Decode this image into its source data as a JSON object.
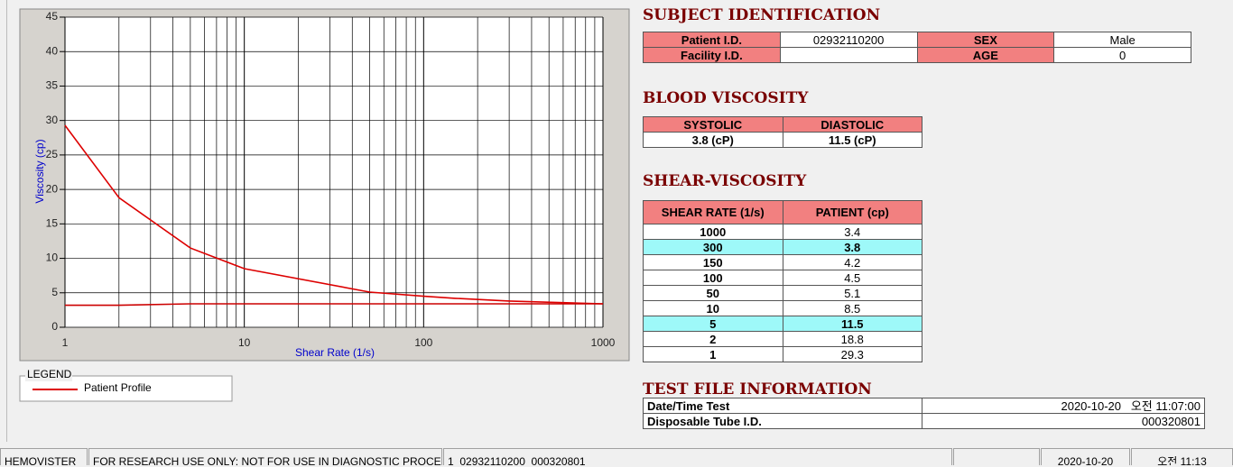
{
  "chart_data": {
    "type": "line",
    "xlabel": "Shear Rate (1/s)",
    "ylabel": "Viscosity (cp)",
    "x": [
      1,
      2,
      5,
      10,
      50,
      100,
      150,
      300,
      1000
    ],
    "series": [
      {
        "name": "Patient Profile",
        "color": "#dd0000",
        "values": [
          29.3,
          18.8,
          11.5,
          8.5,
          5.1,
          4.5,
          4.2,
          3.8,
          3.4
        ]
      },
      {
        "color": "#cc0000",
        "values": [
          3.2,
          3.2,
          3.4,
          3.4,
          3.4,
          3.4,
          3.4,
          3.4,
          3.4
        ]
      }
    ],
    "xscale": "log",
    "xlim": [
      1,
      1000
    ],
    "xticks": [
      1,
      10,
      100,
      1000
    ],
    "xminorticks": [
      2,
      3,
      4,
      5,
      6,
      7,
      8,
      9,
      20,
      30,
      40,
      50,
      60,
      70,
      80,
      90,
      200,
      300,
      400,
      500,
      600,
      700,
      800,
      900
    ],
    "ylim": [
      0,
      45
    ],
    "yticks": [
      0,
      5,
      10,
      15,
      20,
      25,
      30,
      35,
      40,
      45
    ],
    "grid": true,
    "legend_title": "LEGEND"
  },
  "subject_identification": {
    "title": "SUBJECT IDENTIFICATION",
    "rows": [
      [
        "Patient I.D.",
        "02932110200",
        "SEX",
        "Male"
      ],
      [
        "Facility I.D.",
        "",
        "AGE",
        "0"
      ]
    ]
  },
  "blood_viscosity": {
    "title": "BLOOD VISCOSITY",
    "header": [
      "SYSTOLIC",
      "DIASTOLIC"
    ],
    "values": [
      "3.8 (cP)",
      "11.5 (cP)"
    ]
  },
  "shear_viscosity": {
    "title": "SHEAR-VISCOSITY",
    "header": [
      "SHEAR RATE (1/s)",
      "PATIENT (cp)"
    ],
    "rows": [
      [
        "1000",
        "3.4"
      ],
      [
        "300",
        "3.8"
      ],
      [
        "150",
        "4.2"
      ],
      [
        "100",
        "4.5"
      ],
      [
        "50",
        "5.1"
      ],
      [
        "10",
        "8.5"
      ],
      [
        "5",
        "11.5"
      ],
      [
        "2",
        "18.8"
      ],
      [
        "1",
        "29.3"
      ]
    ],
    "highlighted": [
      false,
      true,
      false,
      false,
      false,
      false,
      true,
      false,
      false
    ],
    "highlight_color": "#9ef9f9"
  },
  "test_file": {
    "title": "TEST FILE INFORMATION",
    "rows": [
      [
        "Date/Time Test",
        "2020-10-20   오전 11:07:00"
      ],
      [
        "Disposable Tube I.D.",
        "000320801"
      ]
    ]
  },
  "status_bar": [
    "HEMOVISTER",
    "FOR RESEARCH USE ONLY: NOT FOR USE IN DIAGNOSTIC PROCEDURES",
    "1  02932110200  000320801",
    "",
    "2020-10-20",
    "오전 11:13"
  ]
}
